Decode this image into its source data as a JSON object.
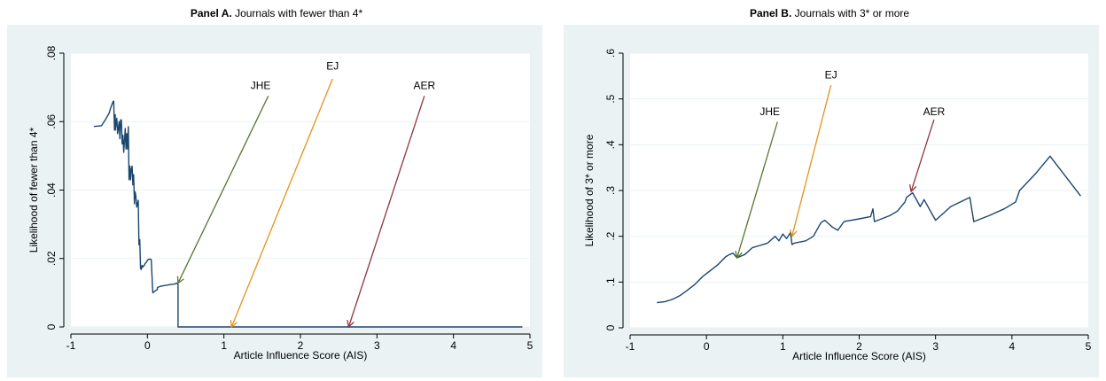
{
  "panels": {
    "a": {
      "prefix": "Panel A.",
      "text": " Journals with fewer than 4*"
    },
    "b": {
      "prefix": "Panel B.",
      "text": "  Journals with 3* or more"
    }
  },
  "colors": {
    "outer_bg": "#eaf2f3",
    "plot_bg": "#ffffff",
    "series": "#1a476f",
    "arrow_JHE": "#55752f",
    "arrow_EJ": "#e8911c",
    "arrow_AER": "#90353b",
    "grid": "#eaf2f3"
  },
  "chart_data": [
    {
      "type": "line",
      "xlabel": "Article Influence Score (AIS)",
      "ylabel": "Likelihood of fewer than 4*",
      "xlim": [
        -1,
        5
      ],
      "ylim": [
        0,
        0.08
      ],
      "xticks": [
        -1,
        0,
        1,
        2,
        3,
        4,
        5
      ],
      "xtick_labels": [
        "-1",
        "0",
        "1",
        "2",
        "3",
        "4",
        "5"
      ],
      "yticks": [
        0,
        0.02,
        0.04,
        0.06,
        0.08
      ],
      "ytick_labels": [
        "0",
        ".02",
        ".04",
        ".06",
        ".08"
      ],
      "grid": "horizontal",
      "x": [
        -0.7,
        -0.6,
        -0.55,
        -0.5,
        -0.48,
        -0.45,
        -0.44,
        -0.43,
        -0.42,
        -0.42,
        -0.4,
        -0.39,
        -0.38,
        -0.37,
        -0.36,
        -0.35,
        -0.34,
        -0.33,
        -0.32,
        -0.31,
        -0.3,
        -0.29,
        -0.28,
        -0.27,
        -0.26,
        -0.25,
        -0.24,
        -0.23,
        -0.22,
        -0.21,
        -0.2,
        -0.19,
        -0.18,
        -0.17,
        -0.16,
        -0.15,
        -0.14,
        -0.13,
        -0.12,
        -0.11,
        -0.1,
        -0.09,
        -0.08,
        -0.07,
        -0.06,
        -0.05,
        -0.04,
        -0.03,
        -0.02,
        -0.01,
        0.0,
        0.02,
        0.04,
        0.05,
        0.07,
        0.1,
        0.13,
        0.13,
        0.16,
        0.2,
        0.25,
        0.3,
        0.35,
        0.38,
        0.4,
        0.4,
        0.42,
        1.0,
        2.0,
        3.0,
        4.0,
        4.9
      ],
      "y": [
        0.0586,
        0.0588,
        0.0605,
        0.0625,
        0.064,
        0.0658,
        0.066,
        0.0575,
        0.062,
        0.0575,
        0.061,
        0.0565,
        0.058,
        0.06,
        0.055,
        0.0605,
        0.0605,
        0.0535,
        0.056,
        0.051,
        0.054,
        0.058,
        0.052,
        0.0565,
        0.052,
        0.0585,
        0.043,
        0.047,
        0.043,
        0.0462,
        0.047,
        0.0415,
        0.0445,
        0.036,
        0.0395,
        0.038,
        0.035,
        0.036,
        0.037,
        0.024,
        0.0255,
        0.017,
        0.0168,
        0.018,
        0.0175,
        0.0178,
        0.018,
        0.0185,
        0.0188,
        0.019,
        0.0195,
        0.0198,
        0.0198,
        0.0196,
        0.01,
        0.0105,
        0.011,
        0.0115,
        0.0118,
        0.012,
        0.0122,
        0.0124,
        0.0125,
        0.0128,
        0.0125,
        0.0,
        0.0,
        0.0,
        0.0,
        0.0,
        0.0,
        0.0
      ],
      "annotations": [
        {
          "label": "JHE",
          "arrow_from": [
            1.58,
            0.0675
          ],
          "arrow_to": [
            0.4,
            0.0128
          ]
        },
        {
          "label": "EJ",
          "arrow_from": [
            2.42,
            0.0725
          ],
          "arrow_to": [
            1.1,
            0.0
          ]
        },
        {
          "label": "AER",
          "arrow_from": [
            3.62,
            0.0675
          ],
          "arrow_to": [
            2.63,
            0.0
          ]
        }
      ],
      "annotation_labels": [
        {
          "text": "JHE",
          "x": 1.48,
          "y": 0.0695
        },
        {
          "text": "EJ",
          "x": 2.42,
          "y": 0.0752
        },
        {
          "text": "AER",
          "x": 3.62,
          "y": 0.0695
        }
      ]
    },
    {
      "type": "line",
      "xlabel": "Article Influence Score (AIS)",
      "ylabel": "Likelihood of 3* or more",
      "xlim": [
        -1,
        5
      ],
      "ylim": [
        0,
        0.6
      ],
      "xticks": [
        -1,
        0,
        1,
        2,
        3,
        4,
        5
      ],
      "xtick_labels": [
        "-1",
        "0",
        "1",
        "2",
        "3",
        "4",
        "5"
      ],
      "yticks": [
        0,
        0.1,
        0.2,
        0.3,
        0.4,
        0.5,
        0.6
      ],
      "ytick_labels": [
        "0",
        ".1",
        ".2",
        ".3",
        ".4",
        ".5",
        ".6"
      ],
      "grid": "horizontal",
      "x": [
        -0.65,
        -0.55,
        -0.45,
        -0.35,
        -0.25,
        -0.15,
        -0.05,
        0.05,
        0.15,
        0.25,
        0.3,
        0.35,
        0.4,
        0.5,
        0.6,
        0.7,
        0.8,
        0.9,
        0.95,
        1.0,
        1.05,
        1.1,
        1.12,
        1.15,
        1.3,
        1.4,
        1.5,
        1.55,
        1.65,
        1.72,
        1.8,
        2.0,
        2.15,
        2.18,
        2.2,
        2.4,
        2.5,
        2.6,
        2.62,
        2.7,
        2.8,
        2.85,
        3.0,
        3.2,
        3.45,
        3.5,
        3.7,
        3.9,
        4.05,
        4.1,
        4.3,
        4.5,
        4.9
      ],
      "y": [
        0.055,
        0.057,
        0.062,
        0.07,
        0.082,
        0.095,
        0.112,
        0.125,
        0.138,
        0.155,
        0.16,
        0.163,
        0.153,
        0.16,
        0.175,
        0.18,
        0.185,
        0.2,
        0.19,
        0.205,
        0.195,
        0.208,
        0.182,
        0.185,
        0.19,
        0.2,
        0.23,
        0.235,
        0.22,
        0.213,
        0.232,
        0.238,
        0.243,
        0.26,
        0.232,
        0.245,
        0.255,
        0.275,
        0.285,
        0.295,
        0.265,
        0.28,
        0.235,
        0.265,
        0.285,
        0.232,
        0.245,
        0.26,
        0.275,
        0.3,
        0.335,
        0.375,
        0.288
      ],
      "annotations": [
        {
          "label": "JHE",
          "arrow_from": [
            0.93,
            0.45
          ],
          "arrow_to": [
            0.4,
            0.153
          ]
        },
        {
          "label": "EJ",
          "arrow_from": [
            1.63,
            0.53
          ],
          "arrow_to": [
            1.12,
            0.2
          ]
        },
        {
          "label": "AER",
          "arrow_from": [
            2.98,
            0.455
          ],
          "arrow_to": [
            2.68,
            0.298
          ]
        }
      ],
      "annotation_labels": [
        {
          "text": "JHE",
          "x": 0.83,
          "y": 0.465
        },
        {
          "text": "EJ",
          "x": 1.63,
          "y": 0.545
        },
        {
          "text": "AER",
          "x": 2.98,
          "y": 0.465
        }
      ]
    }
  ]
}
